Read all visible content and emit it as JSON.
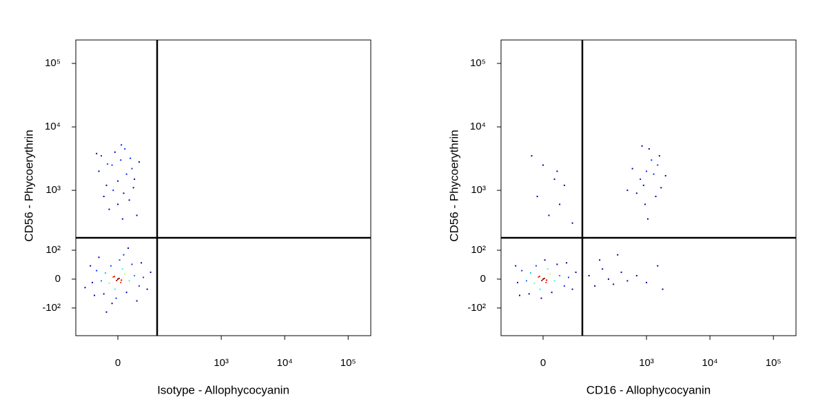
{
  "chart_data": [
    {
      "type": "scatter",
      "xlabel": "Isotype - Allophycocyanin",
      "ylabel": "CD56 - Phycoerythrin",
      "xscale": {
        "type": "arcsinh",
        "cofactor": 47
      },
      "yscale": {
        "type": "arcsinh",
        "cofactor": 80
      },
      "xlim": [
        -103,
        227000
      ],
      "ylim": [
        -306,
        234000
      ],
      "xticks": [
        0,
        {
          "value": 1000,
          "label": "10³"
        },
        {
          "value": 10000,
          "label": "10⁴"
        },
        {
          "value": 100000,
          "label": "10⁵"
        }
      ],
      "yticks": [
        {
          "value": 100000,
          "label": "10⁵"
        },
        {
          "value": 10000,
          "label": "10⁴"
        },
        {
          "value": 1000,
          "label": "10³"
        },
        {
          "value": 100,
          "label": "10²"
        },
        0,
        {
          "value": -100,
          "label": "-10²"
        }
      ],
      "gates": {
        "x": 92,
        "y": 170
      },
      "color_by": "density",
      "x": [
        0,
        5,
        -8,
        12,
        -15,
        20,
        -22,
        8,
        -5,
        30,
        -30,
        15,
        -12,
        40,
        -40,
        25,
        -25,
        50,
        -50,
        3,
        -3,
        45,
        -45,
        60,
        -55,
        10,
        -10,
        35,
        -35,
        70,
        -70,
        2,
        -2,
        6,
        -6,
        18,
        -20,
        -10,
        5,
        15,
        -20,
        25,
        -5,
        10,
        -30,
        30,
        0,
        20,
        -15,
        8,
        -25,
        40,
        -35,
        12,
        -8,
        22,
        0,
        -40,
        35,
        -18,
        6,
        28
      ],
      "y": [
        0,
        -10,
        6,
        15,
        -12,
        -5,
        18,
        30,
        -30,
        10,
        -5,
        -40,
        40,
        -20,
        25,
        45,
        -45,
        5,
        -10,
        60,
        -60,
        50,
        -50,
        -30,
        40,
        80,
        -80,
        -70,
        70,
        20,
        -25,
        2,
        -4,
        -3,
        8,
        110,
        -120,
        2500,
        3000,
        1800,
        1200,
        2200,
        4000,
        900,
        3500,
        1500,
        600,
        700,
        500,
        350,
        800,
        2800,
        2000,
        4500,
        1000,
        3200,
        1400,
        3800,
        400,
        2600,
        5200,
        1100
      ]
    },
    {
      "type": "scatter",
      "xlabel": "CD16 - Allophycocyanin",
      "ylabel": "CD56 - Phycoerythrin",
      "xscale": {
        "type": "arcsinh",
        "cofactor": 47
      },
      "yscale": {
        "type": "arcsinh",
        "cofactor": 80
      },
      "xlim": [
        -103,
        227000
      ],
      "ylim": [
        -306,
        234000
      ],
      "xticks": [
        0,
        {
          "value": 1000,
          "label": "10³"
        },
        {
          "value": 10000,
          "label": "10⁴"
        },
        {
          "value": 100000,
          "label": "10⁵"
        }
      ],
      "yticks": [
        {
          "value": 100000,
          "label": "10⁵"
        },
        {
          "value": 10000,
          "label": "10⁴"
        },
        {
          "value": 1000,
          "label": "10³"
        },
        {
          "value": 100,
          "label": "10²"
        },
        0,
        {
          "value": -100,
          "label": "-10²"
        }
      ],
      "gates": {
        "x": 92,
        "y": 170
      },
      "color_by": "density",
      "x": [
        0,
        5,
        -8,
        12,
        -15,
        20,
        -22,
        8,
        -5,
        30,
        -30,
        15,
        -12,
        40,
        -40,
        25,
        -25,
        50,
        -50,
        3,
        -3,
        45,
        -45,
        60,
        -55,
        2,
        -2,
        6,
        -6,
        70,
        120,
        150,
        200,
        250,
        300,
        400,
        500,
        700,
        1000,
        1500,
        1800,
        180,
        350,
        1000,
        800,
        1200,
        900,
        1500,
        700,
        1100,
        600,
        1300,
        950,
        1600,
        1050,
        2000,
        500,
        1400,
        850,
        1700,
        0,
        20,
        -10,
        30,
        10,
        40,
        -20,
        60,
        25
      ],
      "y": [
        0,
        -10,
        6,
        15,
        -12,
        -5,
        18,
        30,
        -30,
        10,
        -5,
        -40,
        40,
        -20,
        25,
        45,
        -45,
        5,
        -10,
        60,
        -60,
        50,
        -50,
        -30,
        40,
        2,
        -4,
        -3,
        8,
        20,
        10,
        -20,
        30,
        0,
        -15,
        20,
        -5,
        10,
        -10,
        40,
        -30,
        60,
        80,
        2000,
        1500,
        3000,
        1200,
        2500,
        900,
        4500,
        2200,
        1800,
        600,
        3500,
        350,
        1700,
        1000,
        800,
        5000,
        1100,
        2500,
        1500,
        800,
        600,
        400,
        1200,
        3500,
        300,
        2000
      ]
    }
  ]
}
